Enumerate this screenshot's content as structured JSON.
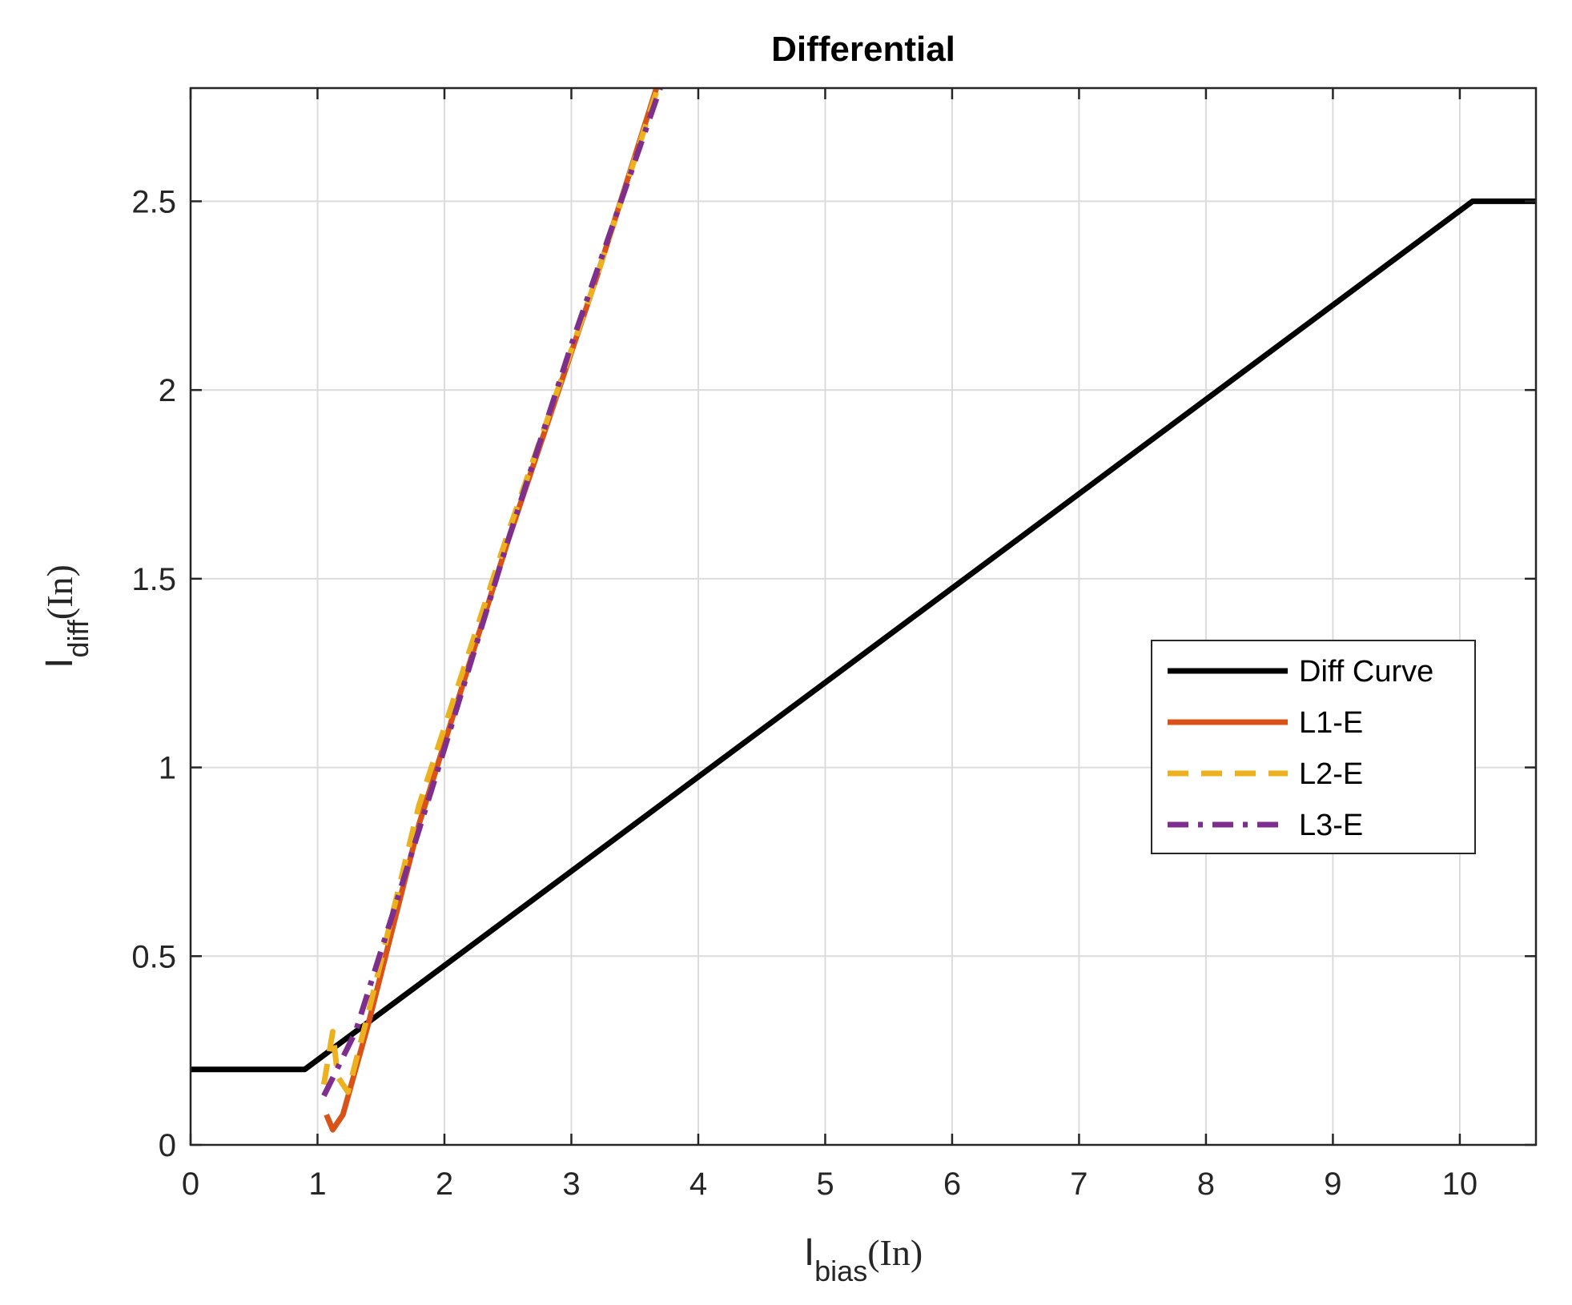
{
  "chart_data": {
    "type": "line",
    "title": "Differential",
    "xlabel": {
      "main": "I",
      "sub": "bias",
      "unit": "(In)"
    },
    "ylabel": {
      "main": "I",
      "sub": "diff",
      "unit": "(In)"
    },
    "xlim": [
      0,
      10.6
    ],
    "ylim": [
      0,
      2.8
    ],
    "xticks": [
      0,
      1,
      2,
      3,
      4,
      5,
      6,
      7,
      8,
      9,
      10
    ],
    "xtick_labels": [
      "0",
      "1",
      "2",
      "3",
      "4",
      "5",
      "6",
      "7",
      "8",
      "9",
      "10"
    ],
    "yticks": [
      0,
      0.5,
      1,
      1.5,
      2,
      2.5
    ],
    "ytick_labels": [
      "0",
      "0.5",
      "1",
      "1.5",
      "2",
      "2.5"
    ],
    "grid": true,
    "legend_position": "right-center",
    "series": [
      {
        "name": "Diff Curve",
        "color": "#000000",
        "style": "solid",
        "x": [
          0,
          0.9,
          10.1,
          10.6
        ],
        "y": [
          0.2,
          0.2,
          2.5,
          2.5
        ]
      },
      {
        "name": "L1-E",
        "color": "#D95319",
        "style": "solid",
        "x": [
          1.07,
          1.12,
          1.2,
          1.4,
          1.8,
          2.5,
          3.2,
          3.67
        ],
        "y": [
          0.08,
          0.04,
          0.08,
          0.32,
          0.85,
          1.6,
          2.3,
          2.8
        ]
      },
      {
        "name": "L2-E",
        "color": "#EDB120",
        "style": "dashed",
        "x": [
          1.05,
          1.12,
          1.16,
          1.24,
          1.4,
          1.8,
          2.5,
          3.2,
          3.68
        ],
        "y": [
          0.16,
          0.3,
          0.18,
          0.14,
          0.35,
          0.9,
          1.62,
          2.3,
          2.8
        ]
      },
      {
        "name": "L3-E",
        "color": "#7E2F8E",
        "style": "dashdot",
        "x": [
          1.05,
          1.3,
          1.6,
          2.0,
          2.5,
          3.0,
          3.7
        ],
        "y": [
          0.13,
          0.3,
          0.62,
          1.05,
          1.6,
          2.12,
          2.8
        ]
      }
    ]
  }
}
